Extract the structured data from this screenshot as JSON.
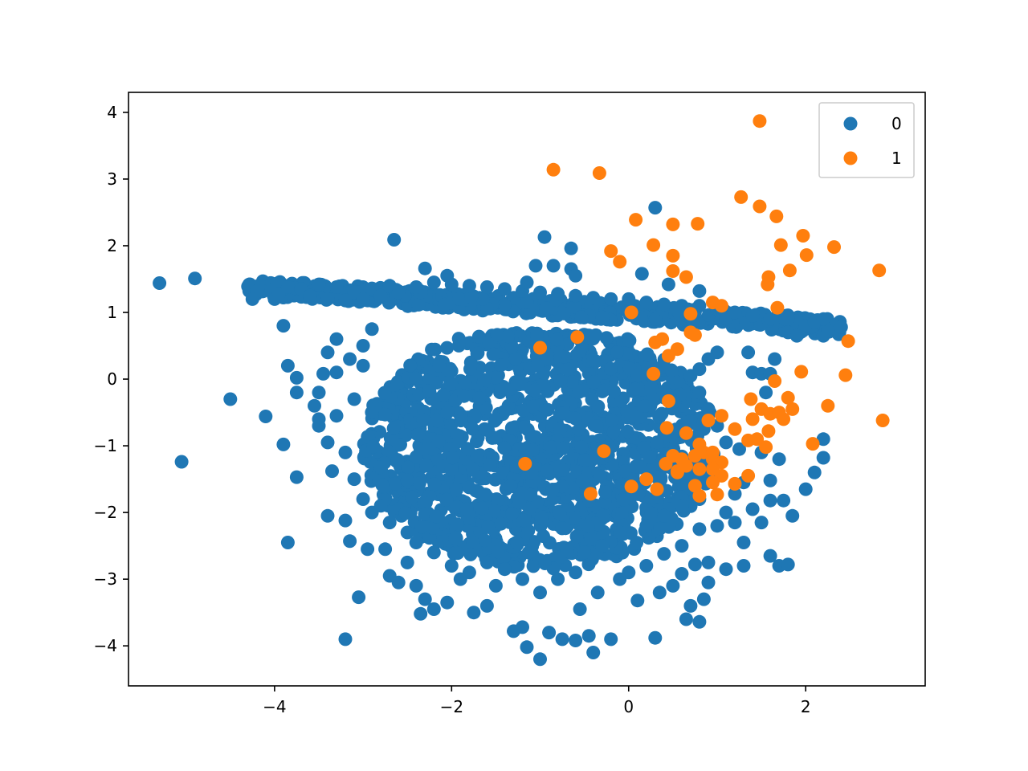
{
  "chart_data": {
    "type": "scatter",
    "title": "",
    "xlabel": "",
    "ylabel": "",
    "xlim": [
      -5.65,
      3.35
    ],
    "ylim": [
      -4.6,
      4.3
    ],
    "xticks": [
      -4,
      -2,
      0,
      2
    ],
    "yticks": [
      -4,
      -3,
      -2,
      -1,
      0,
      1,
      2,
      3,
      4
    ],
    "grid": false,
    "legend_position": "top-right",
    "series": [
      {
        "name": "0",
        "color": "#1f77b4",
        "points": [
          [
            -5.3,
            1.44
          ],
          [
            -4.9,
            1.51
          ],
          [
            -4.3,
            1.39
          ],
          [
            -4.2,
            1.32
          ],
          [
            -4.25,
            1.2
          ],
          [
            -4.0,
            1.2
          ],
          [
            -3.95,
            1.28
          ],
          [
            -3.85,
            1.38
          ],
          [
            -3.7,
            1.35
          ],
          [
            -3.5,
            1.42
          ],
          [
            -3.3,
            1.38
          ],
          [
            -3.1,
            1.3
          ],
          [
            -2.9,
            1.36
          ],
          [
            -2.7,
            1.4
          ],
          [
            -3.9,
            0.8
          ],
          [
            -3.85,
            0.2
          ],
          [
            -3.75,
            0.02
          ],
          [
            -3.75,
            -0.2
          ],
          [
            -4.5,
            -0.3
          ],
          [
            -4.1,
            -0.56
          ],
          [
            -3.9,
            -0.98
          ],
          [
            -3.75,
            -1.47
          ],
          [
            -3.85,
            -2.45
          ],
          [
            -5.05,
            -1.24
          ],
          [
            -3.5,
            -0.7
          ],
          [
            -3.4,
            -0.95
          ],
          [
            -3.35,
            -1.38
          ],
          [
            -3.4,
            -2.05
          ],
          [
            -3.2,
            -2.12
          ],
          [
            -3.15,
            -2.43
          ],
          [
            -3.2,
            -3.9
          ],
          [
            -3.05,
            -3.27
          ],
          [
            -2.95,
            -2.55
          ],
          [
            -2.75,
            -2.55
          ],
          [
            -2.7,
            -2.95
          ],
          [
            -2.6,
            -3.05
          ],
          [
            -2.5,
            -2.75
          ],
          [
            -2.4,
            -3.1
          ],
          [
            -2.3,
            -3.3
          ],
          [
            -2.35,
            -3.52
          ],
          [
            -2.2,
            -3.45
          ],
          [
            -2.05,
            -3.35
          ],
          [
            -1.9,
            -3.0
          ],
          [
            -1.75,
            -3.5
          ],
          [
            -1.6,
            -3.4
          ],
          [
            -1.5,
            -3.1
          ],
          [
            -1.3,
            -3.78
          ],
          [
            -1.2,
            -3.72
          ],
          [
            -1.15,
            -4.02
          ],
          [
            -1.0,
            -4.2
          ],
          [
            -0.9,
            -3.8
          ],
          [
            -0.75,
            -3.9
          ],
          [
            -0.6,
            -3.92
          ],
          [
            -0.45,
            -3.85
          ],
          [
            -0.4,
            -4.1
          ],
          [
            -0.2,
            -3.9
          ],
          [
            -0.55,
            -3.45
          ],
          [
            -0.35,
            -3.2
          ],
          [
            -0.1,
            -3.0
          ],
          [
            0.1,
            -3.32
          ],
          [
            0.3,
            -3.88
          ],
          [
            0.35,
            -3.2
          ],
          [
            0.5,
            -3.1
          ],
          [
            0.65,
            -3.6
          ],
          [
            0.8,
            -3.64
          ],
          [
            0.85,
            -3.3
          ],
          [
            0.7,
            -3.4
          ],
          [
            0.9,
            -3.05
          ],
          [
            0.6,
            -2.92
          ],
          [
            0.75,
            -2.78
          ],
          [
            0.9,
            -2.75
          ],
          [
            1.1,
            -2.85
          ],
          [
            1.3,
            -2.8
          ],
          [
            1.3,
            -2.45
          ],
          [
            1.5,
            -2.15
          ],
          [
            1.6,
            -2.65
          ],
          [
            1.7,
            -2.8
          ],
          [
            1.8,
            -2.78
          ],
          [
            1.85,
            -2.05
          ],
          [
            2.0,
            -1.65
          ],
          [
            1.6,
            -1.82
          ],
          [
            1.75,
            -1.82
          ],
          [
            1.6,
            -1.52
          ],
          [
            2.1,
            -1.4
          ],
          [
            2.2,
            -1.18
          ],
          [
            2.2,
            -0.9
          ],
          [
            1.7,
            -1.2
          ],
          [
            1.5,
            -1.1
          ],
          [
            1.3,
            -1.55
          ],
          [
            1.2,
            -1.72
          ],
          [
            1.1,
            -2.0
          ],
          [
            1.0,
            -2.2
          ],
          [
            1.2,
            -2.15
          ],
          [
            1.4,
            -1.95
          ],
          [
            0.8,
            -2.25
          ],
          [
            0.6,
            -2.5
          ],
          [
            0.4,
            -2.62
          ],
          [
            0.2,
            -2.8
          ],
          [
            0.0,
            -2.9
          ],
          [
            1.4,
            0.1
          ],
          [
            1.5,
            0.08
          ],
          [
            1.6,
            0.08
          ],
          [
            1.65,
            0.3
          ],
          [
            1.35,
            0.4
          ],
          [
            1.0,
            0.4
          ],
          [
            0.9,
            0.3
          ],
          [
            0.8,
            0.15
          ],
          [
            0.7,
            0.05
          ],
          [
            0.8,
            -0.2
          ],
          [
            0.9,
            -0.45
          ],
          [
            1.0,
            -0.7
          ],
          [
            1.1,
            -0.95
          ],
          [
            1.25,
            -1.05
          ],
          [
            1.55,
            -0.2
          ],
          [
            1.8,
            0.7
          ],
          [
            1.9,
            0.65
          ],
          [
            2.0,
            0.8
          ],
          [
            2.1,
            0.85
          ],
          [
            2.2,
            0.65
          ],
          [
            2.25,
            0.72
          ],
          [
            2.4,
            0.78
          ],
          [
            2.2,
            0.9
          ],
          [
            1.8,
            0.9
          ],
          [
            1.6,
            0.9
          ],
          [
            1.4,
            0.95
          ],
          [
            1.2,
            1.0
          ],
          [
            1.0,
            1.05
          ],
          [
            0.8,
            1.1
          ],
          [
            0.6,
            1.1
          ],
          [
            0.4,
            1.12
          ],
          [
            0.2,
            1.15
          ],
          [
            0.0,
            1.2
          ],
          [
            -0.2,
            1.2
          ],
          [
            -0.4,
            1.22
          ],
          [
            -0.6,
            1.25
          ],
          [
            -0.8,
            1.28
          ],
          [
            -1.0,
            1.3
          ],
          [
            -1.2,
            1.32
          ],
          [
            -1.4,
            1.35
          ],
          [
            -1.6,
            1.38
          ],
          [
            -1.8,
            1.4
          ],
          [
            -2.0,
            1.42
          ],
          [
            -2.2,
            1.45
          ],
          [
            -2.4,
            1.38
          ],
          [
            -2.6,
            1.3
          ],
          [
            -2.8,
            1.25
          ],
          [
            -3.0,
            1.2
          ],
          [
            -3.2,
            1.18
          ],
          [
            -3.4,
            1.2
          ],
          [
            -3.6,
            1.25
          ],
          [
            -2.65,
            2.09
          ],
          [
            -0.95,
            2.13
          ],
          [
            -0.65,
            1.96
          ],
          [
            0.3,
            2.57
          ],
          [
            0.15,
            1.58
          ],
          [
            0.45,
            1.42
          ],
          [
            0.8,
            1.32
          ],
          [
            -1.05,
            1.7
          ],
          [
            -0.85,
            1.7
          ],
          [
            -0.65,
            1.65
          ],
          [
            -0.6,
            1.55
          ],
          [
            -2.3,
            1.66
          ],
          [
            -2.05,
            1.55
          ],
          [
            -1.15,
            1.45
          ],
          [
            -3.3,
            0.6
          ],
          [
            -3.4,
            0.4
          ],
          [
            -3.3,
            0.1
          ],
          [
            -3.45,
            0.08
          ],
          [
            -3.5,
            -0.2
          ],
          [
            -3.55,
            -0.4
          ],
          [
            -3.5,
            -0.6
          ],
          [
            -3.3,
            -0.55
          ],
          [
            -3.1,
            -0.3
          ],
          [
            -3.15,
            0.3
          ],
          [
            -3.0,
            0.5
          ],
          [
            -2.9,
            0.75
          ],
          [
            -3.0,
            0.2
          ],
          [
            -3.2,
            -1.1
          ],
          [
            -3.1,
            -1.5
          ],
          [
            -3.0,
            -1.8
          ],
          [
            -2.9,
            -2.0
          ],
          [
            -2.8,
            -1.9
          ],
          [
            -2.7,
            -2.15
          ],
          [
            -2.5,
            -2.3
          ],
          [
            -2.4,
            -2.45
          ],
          [
            -2.2,
            -2.6
          ],
          [
            -2.0,
            -2.8
          ],
          [
            -1.8,
            -2.9
          ],
          [
            -1.6,
            -2.75
          ],
          [
            -1.4,
            -2.85
          ],
          [
            -1.2,
            -3.0
          ],
          [
            -1.0,
            -3.2
          ],
          [
            -0.8,
            -3.0
          ],
          [
            -0.6,
            -2.9
          ],
          [
            -0.5,
            -2.6
          ],
          [
            -0.3,
            -2.5
          ],
          [
            -0.1,
            -2.3
          ],
          [
            0.2,
            -2.2
          ],
          [
            0.4,
            -2.05
          ],
          [
            0.6,
            -1.9
          ],
          [
            0.8,
            -1.8
          ]
        ],
        "cluster": {
          "note": "",
          "x_range": [
            -3.2,
            1.3
          ],
          "y_range": [
            -3.0,
            1.2
          ]
        }
      },
      {
        "name": "1",
        "color": "#ff7f0e",
        "points": [
          [
            1.48,
            3.87
          ],
          [
            -0.85,
            3.14
          ],
          [
            -0.33,
            3.09
          ],
          [
            1.27,
            2.73
          ],
          [
            1.48,
            2.59
          ],
          [
            1.67,
            2.44
          ],
          [
            0.08,
            2.39
          ],
          [
            0.5,
            2.32
          ],
          [
            0.78,
            2.33
          ],
          [
            1.97,
            2.15
          ],
          [
            1.72,
            2.01
          ],
          [
            2.32,
            1.98
          ],
          [
            2.83,
            1.63
          ],
          [
            1.82,
            1.63
          ],
          [
            2.01,
            1.86
          ],
          [
            0.28,
            2.01
          ],
          [
            -0.2,
            1.92
          ],
          [
            -0.1,
            1.76
          ],
          [
            0.5,
            1.85
          ],
          [
            0.5,
            1.62
          ],
          [
            0.65,
            1.53
          ],
          [
            1.58,
            1.53
          ],
          [
            1.57,
            1.42
          ],
          [
            1.68,
            1.07
          ],
          [
            0.95,
            1.15
          ],
          [
            1.05,
            1.1
          ],
          [
            0.03,
            1.0
          ],
          [
            0.7,
            0.98
          ],
          [
            0.7,
            0.7
          ],
          [
            0.75,
            0.66
          ],
          [
            -0.58,
            0.63
          ],
          [
            -1.0,
            0.47
          ],
          [
            0.3,
            0.55
          ],
          [
            0.38,
            0.6
          ],
          [
            0.45,
            0.35
          ],
          [
            0.55,
            0.45
          ],
          [
            2.48,
            0.57
          ],
          [
            1.95,
            0.11
          ],
          [
            2.45,
            0.06
          ],
          [
            0.28,
            0.08
          ],
          [
            1.65,
            -0.03
          ],
          [
            0.45,
            -0.33
          ],
          [
            1.38,
            -0.3
          ],
          [
            1.5,
            -0.45
          ],
          [
            1.8,
            -0.28
          ],
          [
            1.85,
            -0.45
          ],
          [
            1.6,
            -0.52
          ],
          [
            1.7,
            -0.5
          ],
          [
            2.25,
            -0.4
          ],
          [
            2.87,
            -0.62
          ],
          [
            1.05,
            -0.55
          ],
          [
            0.9,
            -0.62
          ],
          [
            1.4,
            -0.6
          ],
          [
            1.75,
            -0.6
          ],
          [
            1.58,
            -0.78
          ],
          [
            1.2,
            -0.75
          ],
          [
            0.43,
            -0.73
          ],
          [
            0.65,
            -0.81
          ],
          [
            0.8,
            -0.98
          ],
          [
            1.35,
            -0.92
          ],
          [
            1.45,
            -0.9
          ],
          [
            1.55,
            -1.02
          ],
          [
            2.08,
            -0.97
          ],
          [
            -0.28,
            -1.08
          ],
          [
            -1.17,
            -1.27
          ],
          [
            0.42,
            -1.27
          ],
          [
            0.5,
            -1.15
          ],
          [
            0.6,
            -1.2
          ],
          [
            0.75,
            -1.15
          ],
          [
            0.85,
            -1.1
          ],
          [
            0.95,
            -1.2
          ],
          [
            1.05,
            -1.25
          ],
          [
            0.55,
            -1.38
          ],
          [
            0.65,
            -1.3
          ],
          [
            0.8,
            -1.35
          ],
          [
            0.95,
            -1.35
          ],
          [
            1.05,
            -1.45
          ],
          [
            1.35,
            -1.45
          ],
          [
            0.2,
            -1.5
          ],
          [
            0.75,
            -1.6
          ],
          [
            0.95,
            -1.55
          ],
          [
            1.2,
            -1.57
          ],
          [
            0.03,
            -1.61
          ],
          [
            0.32,
            -1.65
          ],
          [
            -0.43,
            -1.72
          ],
          [
            0.8,
            -1.75
          ],
          [
            1.0,
            -1.73
          ],
          [
            0.55,
            -1.4
          ],
          [
            0.95,
            -1.1
          ]
        ]
      }
    ]
  }
}
